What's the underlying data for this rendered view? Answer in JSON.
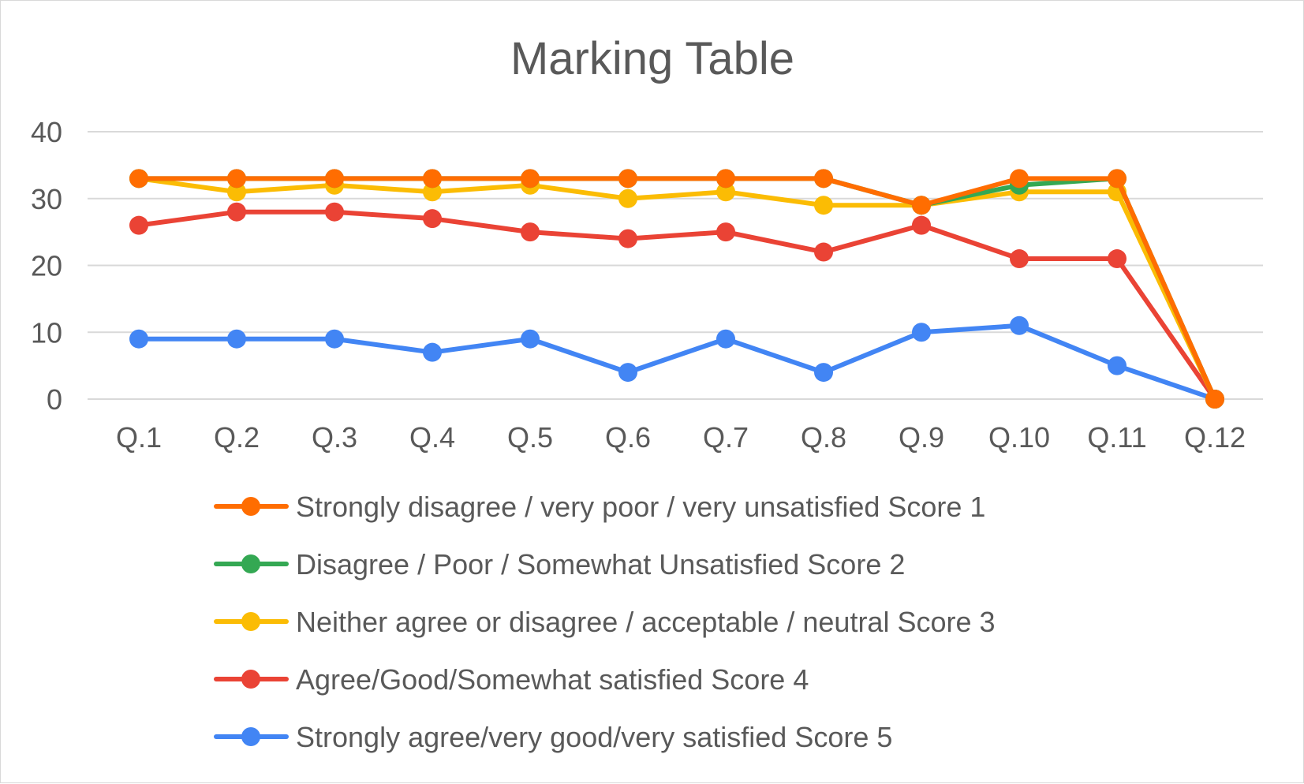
{
  "chart_data": {
    "type": "line",
    "title": "Marking Table",
    "xlabel": "",
    "ylabel": "",
    "categories": [
      "Q.1",
      "Q.2",
      "Q.3",
      "Q.4",
      "Q.5",
      "Q.6",
      "Q.7",
      "Q.8",
      "Q.9",
      "Q.10",
      "Q.11",
      "Q.12"
    ],
    "ylim": [
      0,
      40
    ],
    "yticks": [
      0,
      10,
      20,
      30,
      40
    ],
    "grid": true,
    "legend_position": "bottom",
    "series": [
      {
        "name": "Strongly disagree / very poor / very unsatisfied  Score 1",
        "color": "#FF6D01",
        "values": [
          33,
          33,
          33,
          33,
          33,
          33,
          33,
          33,
          29,
          33,
          33,
          0
        ]
      },
      {
        "name": "Disagree / Poor / Somewhat Unsatisfied  Score 2",
        "color": "#34A853",
        "values": [
          33,
          33,
          33,
          33,
          33,
          33,
          33,
          33,
          29,
          32,
          33,
          0
        ]
      },
      {
        "name": "Neither agree or disagree / acceptable / neutral Score 3",
        "color": "#FBBC04",
        "values": [
          33,
          31,
          32,
          31,
          32,
          30,
          31,
          29,
          29,
          31,
          31,
          0
        ]
      },
      {
        "name": "Agree/Good/Somewhat satisfied  Score 4",
        "color": "#EA4335",
        "values": [
          26,
          28,
          28,
          27,
          25,
          24,
          25,
          22,
          26,
          21,
          21,
          0
        ]
      },
      {
        "name": "Strongly agree/very good/very satisfied Score 5",
        "color": "#4285F4",
        "values": [
          9,
          9,
          9,
          7,
          9,
          4,
          9,
          4,
          10,
          11,
          5,
          0
        ]
      }
    ],
    "draw_order": [
      4,
      3,
      2,
      1,
      0
    ]
  }
}
